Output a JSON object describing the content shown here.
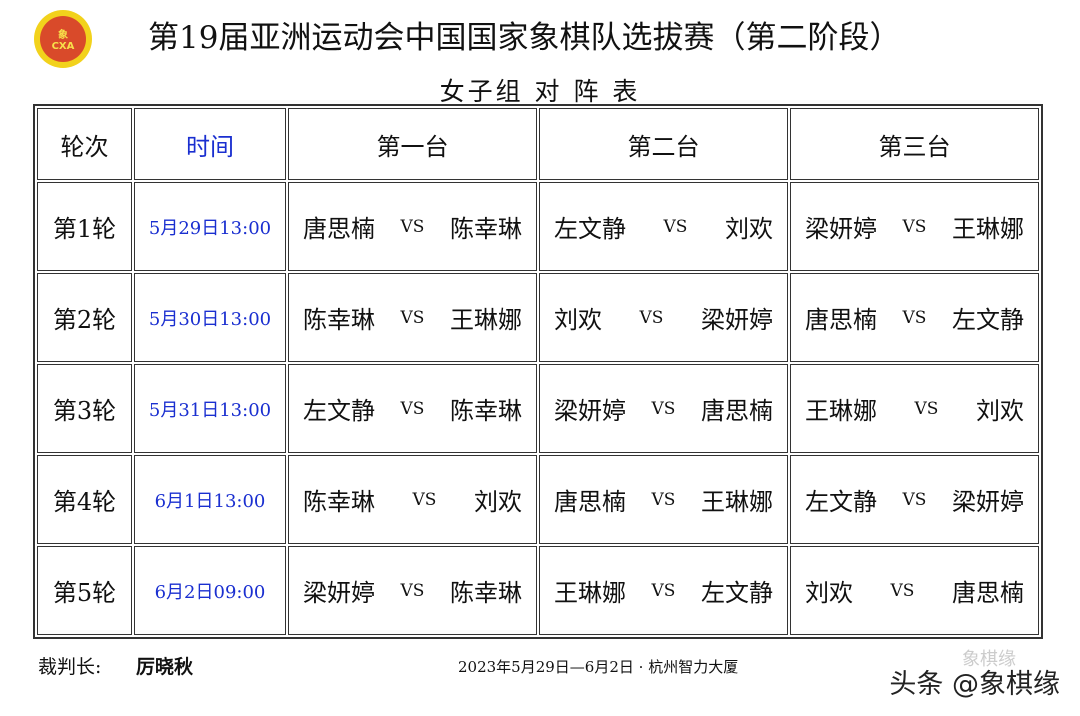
{
  "logo": {
    "text": "CXA",
    "glyph": "象"
  },
  "title": "第19届亚洲运动会中国国家象棋队选拔赛（第二阶段）",
  "subtitle": "女子组 对 阵 表",
  "headers": [
    "轮次",
    "时间",
    "第一台",
    "第二台",
    "第三台"
  ],
  "vs": "VS",
  "rounds": [
    {
      "round": "第1轮",
      "time": "5月29日13:00",
      "boards": [
        [
          "唐思楠",
          "陈幸琳"
        ],
        [
          "左文静",
          "刘欢"
        ],
        [
          "梁妍婷",
          "王琳娜"
        ]
      ]
    },
    {
      "round": "第2轮",
      "time": "5月30日13:00",
      "boards": [
        [
          "陈幸琳",
          "王琳娜"
        ],
        [
          "刘欢",
          "梁妍婷"
        ],
        [
          "唐思楠",
          "左文静"
        ]
      ]
    },
    {
      "round": "第3轮",
      "time": "5月31日13:00",
      "boards": [
        [
          "左文静",
          "陈幸琳"
        ],
        [
          "梁妍婷",
          "唐思楠"
        ],
        [
          "王琳娜",
          "刘欢"
        ]
      ]
    },
    {
      "round": "第4轮",
      "time": "6月1日13:00",
      "boards": [
        [
          "陈幸琳",
          "刘欢"
        ],
        [
          "唐思楠",
          "王琳娜"
        ],
        [
          "左文静",
          "梁妍婷"
        ]
      ]
    },
    {
      "round": "第5轮",
      "time": "6月2日09:00",
      "boards": [
        [
          "梁妍婷",
          "陈幸琳"
        ],
        [
          "王琳娜",
          "左文静"
        ],
        [
          "刘欢",
          "唐思楠"
        ]
      ]
    }
  ],
  "footer": {
    "referee_label": "裁判长:",
    "referee": "厉晓秋",
    "info": "2023年5月29日—6月2日 · 杭州智力大厦"
  },
  "watermark": {
    "main": "头条 @象棋缘",
    "faint": "象棋缘"
  }
}
